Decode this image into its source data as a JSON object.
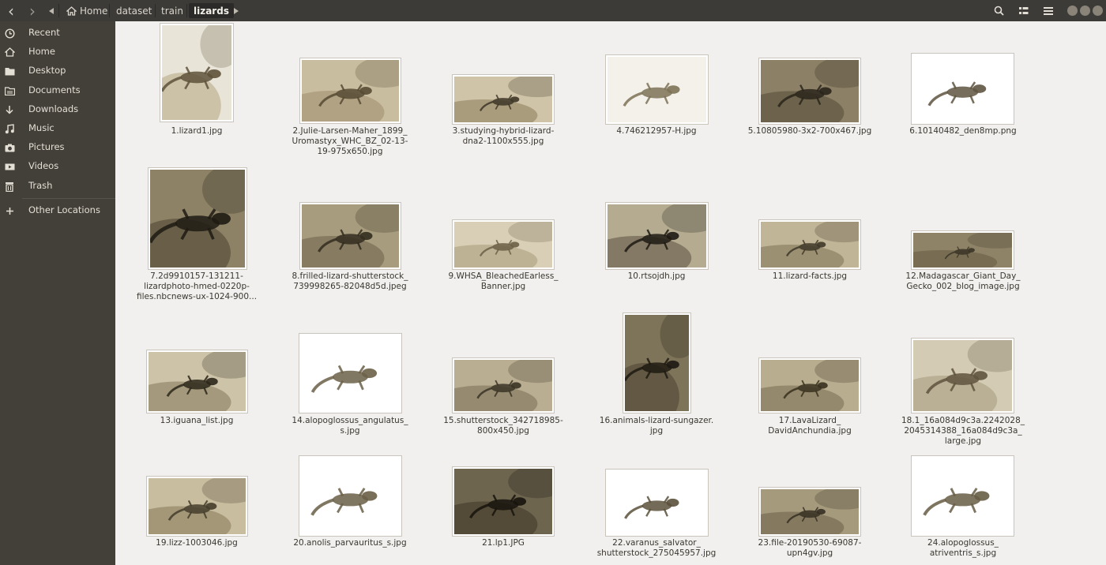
{
  "navigation": {
    "back_label": "‹",
    "forward_label": "›",
    "breadcrumb": [
      "Home",
      "dataset",
      "train",
      "lizards"
    ]
  },
  "sidebar": {
    "items": [
      {
        "label": "Recent",
        "icon": "recent-icon"
      },
      {
        "label": "Home",
        "icon": "home-icon"
      },
      {
        "label": "Desktop",
        "icon": "folder-icon"
      },
      {
        "label": "Documents",
        "icon": "documents-icon"
      },
      {
        "label": "Downloads",
        "icon": "downloads-icon"
      },
      {
        "label": "Music",
        "icon": "music-icon"
      },
      {
        "label": "Pictures",
        "icon": "pictures-icon"
      },
      {
        "label": "Videos",
        "icon": "videos-icon"
      },
      {
        "label": "Trash",
        "icon": "trash-icon"
      },
      {
        "label": "Other Locations",
        "icon": "plus-icon"
      }
    ]
  },
  "files": [
    {
      "name": "1.lizard1.jpg"
    },
    {
      "name": "2.Julie-Larsen-Maher_1899_Uromastyx_WHC_BZ_02-13-19-975x650.jpg"
    },
    {
      "name": "3.studying-hybrid-lizard-dna2-1100x555.jpg"
    },
    {
      "name": "4.746212957-H.jpg"
    },
    {
      "name": "5.10805980-3x2-700x467.jpg"
    },
    {
      "name": "6.10140482_den8mp.png"
    },
    {
      "name": "7.2d9910157-131211-lizardphoto-hmed-0220p-files.nbcnews-ux-1024-900..."
    },
    {
      "name": "8.frilled-lizard-shutterstock_739998265-82048d5d.jpeg"
    },
    {
      "name": "9.WHSA_BleachedEarless_Banner.jpg"
    },
    {
      "name": "10.rtsojdh.jpg"
    },
    {
      "name": "11.lizard-facts.jpg"
    },
    {
      "name": "12.Madagascar_Giant_Day_Gecko_002_blog_image.jpg"
    },
    {
      "name": "13.iguana_list.jpg"
    },
    {
      "name": "14.alopoglossus_angulatus_s.jpg"
    },
    {
      "name": "15.shutterstock_342718985-800x450.jpg"
    },
    {
      "name": "16.animals-lizard-sungazer.jpg"
    },
    {
      "name": "17.LavaLizard_DavidAnchundia.jpg"
    },
    {
      "name": "18.1_16a084d9c3a.2242028_2045314388_16a084d9c3a_large.jpg"
    },
    {
      "name": "19.lizz-1003046.jpg"
    },
    {
      "name": "20.anolis_parvauritus_s.jpg"
    },
    {
      "name": "21.lp1.JPG"
    },
    {
      "name": "22.varanus_salvator_shutterstock_275045957.jpg"
    },
    {
      "name": "23.file-20190530-69087-upn4gv.jpg"
    },
    {
      "name": "24.alopoglossus_atriventris_s.jpg"
    }
  ]
}
